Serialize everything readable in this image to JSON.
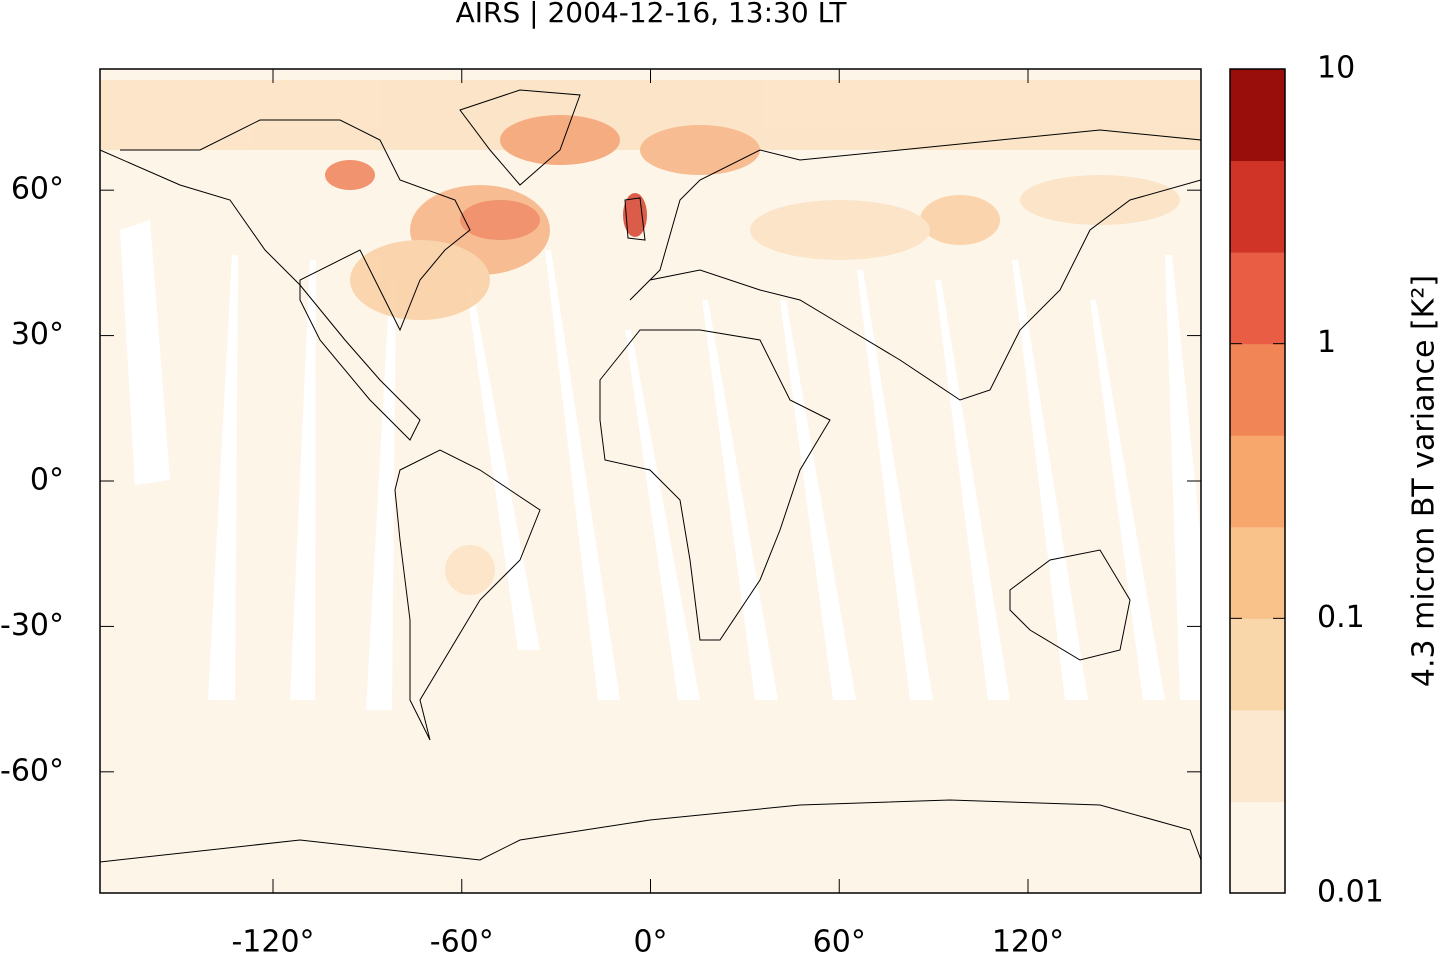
{
  "chart_data": {
    "type": "map",
    "title": "AIRS | 2004-12-16, 13:30 LT",
    "xlim": [
      -175,
      175
    ],
    "ylim": [
      -85,
      85
    ],
    "xticks": [
      {
        "value": -120,
        "label": "-120°"
      },
      {
        "value": -60,
        "label": "-60°"
      },
      {
        "value": 0,
        "label": "0°"
      },
      {
        "value": 60,
        "label": "60°"
      },
      {
        "value": 120,
        "label": "120°"
      }
    ],
    "yticks": [
      {
        "value": 60,
        "label": "60°"
      },
      {
        "value": 30,
        "label": "30°"
      },
      {
        "value": 0,
        "label": "0°"
      },
      {
        "value": -30,
        "label": "-30°"
      },
      {
        "value": -60,
        "label": "-60°"
      }
    ],
    "colorbar": {
      "label": "4.3 micron BT variance [K²]",
      "lim": [
        0.01,
        10
      ],
      "log": true,
      "ticks": [
        0.01,
        0.1,
        1,
        10
      ],
      "colors": [
        "#fef5e9",
        "#fbe8cf",
        "#f9d7aa",
        "#f9c28b",
        "#f7a66c",
        "#f18556",
        "#e85d43",
        "#cf3427",
        "#990e0a"
      ]
    }
  }
}
